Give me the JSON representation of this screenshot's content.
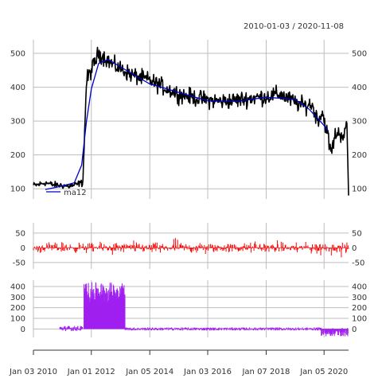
{
  "date_range": "2010-01-03 / 2020-11-08",
  "x_tick_labels": [
    "Jan 03 2010",
    "Jan 01 2012",
    "Jan 05 2014",
    "Jan 03 2016",
    "Jan 07 2018",
    "Jan 05 2020"
  ],
  "chart_data": [
    {
      "type": "line",
      "panel": "price",
      "title": "2010-01-03 / 2020-11-08",
      "x_start": "2010-01-03",
      "x_end": "2020-11-08",
      "x_ticks": [
        "Jan 03 2010",
        "Jan 01 2012",
        "Jan 05 2014",
        "Jan 03 2016",
        "Jan 07 2018",
        "Jan 05 2020"
      ],
      "ylim": [
        70,
        540
      ],
      "y_ticks": [
        100,
        200,
        300,
        400,
        500
      ],
      "grid": true,
      "series": [
        {
          "color": "#000000",
          "anchors_x": [
            "2010-01-03",
            "2010-03-01",
            "2010-06-01",
            "2010-09-01",
            "2011-01-01",
            "2011-04-01",
            "2011-07-01",
            "2011-08-15",
            "2011-09-15",
            "2011-11-01",
            "2012-01-01",
            "2012-04-01",
            "2012-07-01",
            "2012-10-01",
            "2013-01-01",
            "2013-06-01",
            "2014-01-01",
            "2014-07-01",
            "2015-01-01",
            "2015-07-01",
            "2016-01-01",
            "2016-07-01",
            "2017-01-01",
            "2017-07-01",
            "2018-01-01",
            "2018-07-01",
            "2019-01-01",
            "2019-05-01",
            "2019-08-01",
            "2019-10-15",
            "2019-12-15",
            "2020-02-01",
            "2020-04-01",
            "2020-06-01",
            "2020-09-01",
            "2020-10-20",
            "2020-11-08"
          ],
          "anchors_y": [
            110,
            112,
            118,
            112,
            110,
            108,
            112,
            118,
            115,
            420,
            450,
            500,
            485,
            465,
            455,
            435,
            420,
            400,
            380,
            370,
            362,
            358,
            362,
            368,
            372,
            380,
            355,
            345,
            350,
            305,
            325,
            280,
            205,
            265,
            260,
            280,
            80
          ]
        },
        {
          "name": "ma12",
          "color": "#0000cc",
          "x": [
            "2010-06-01",
            "2011-01-01",
            "2011-06-01",
            "2011-09-01",
            "2011-11-01",
            "2012-01-01",
            "2012-04-01",
            "2012-08-01",
            "2013-01-01",
            "2014-01-01",
            "2015-01-01",
            "2016-01-01",
            "2017-01-01",
            "2018-01-01",
            "2019-01-01",
            "2019-07-01",
            "2020-01-01",
            "2020-03-01"
          ],
          "y": [
            98,
            108,
            118,
            170,
            300,
            395,
            470,
            482,
            460,
            410,
            385,
            360,
            358,
            370,
            365,
            335,
            288,
            270
          ]
        }
      ]
    },
    {
      "type": "bar",
      "panel": "change",
      "color": "#ff0000",
      "ylim": [
        -72,
        85
      ],
      "y_ticks": [
        -50,
        0,
        50
      ],
      "grid": true,
      "x_start": "2010-01-03",
      "x_end": "2020-11-08",
      "typical_range": [
        -50,
        50
      ],
      "max": 82,
      "min": -62
    },
    {
      "type": "bar",
      "panel": "momentum",
      "color": "#a020f0",
      "ylim": [
        -80,
        460
      ],
      "y_ticks": [
        0,
        100,
        200,
        300,
        400
      ],
      "grid": true,
      "x_start": "2010-01-03",
      "x_end": "2020-11-08",
      "segments": [
        {
          "from": "2010-12-01",
          "to": "2011-09-15",
          "low": -20,
          "high": 30
        },
        {
          "from": "2011-10-01",
          "to": "2013-03-01",
          "low": 0,
          "high": 440
        },
        {
          "from": "2013-03-01",
          "to": "2019-12-01",
          "low": -15,
          "high": 15
        },
        {
          "from": "2019-12-01",
          "to": "2020-11-08",
          "low": -70,
          "high": 10
        }
      ]
    }
  ]
}
